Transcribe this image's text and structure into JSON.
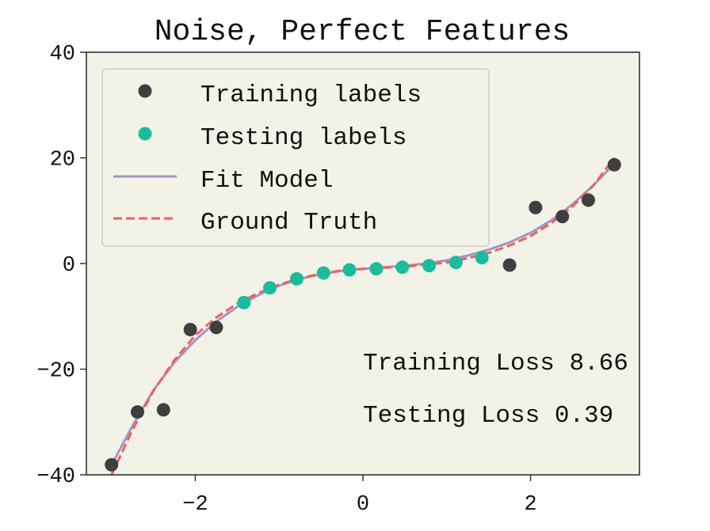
{
  "chart_data": {
    "type": "scatter",
    "title": "Noise, Perfect Features",
    "xlabel": "",
    "ylabel": "",
    "xlim": [
      -3.3,
      3.3
    ],
    "ylim": [
      -40,
      40
    ],
    "x_ticks": [
      -2,
      0,
      2
    ],
    "y_ticks": [
      -40,
      -20,
      0,
      20,
      40
    ],
    "grid": false,
    "legend_position": "upper-left",
    "background_color": "#f2f2e6",
    "series": [
      {
        "name": "Training labels",
        "kind": "points",
        "color": "#3f3f3f",
        "x": [
          -3.0,
          -2.69,
          -2.38,
          -2.06,
          -1.75,
          1.75,
          2.06,
          2.38,
          2.69,
          3.0
        ],
        "y": [
          -38.1,
          -28.1,
          -27.7,
          -12.5,
          -12.1,
          -0.3,
          10.6,
          8.9,
          12.0,
          18.7
        ]
      },
      {
        "name": "Testing labels",
        "kind": "points",
        "color": "#1abc9c",
        "x": [
          -1.42,
          -1.11,
          -0.79,
          -0.47,
          -0.16,
          0.16,
          0.47,
          0.79,
          1.11,
          1.42
        ],
        "y": [
          -7.4,
          -4.6,
          -2.9,
          -1.8,
          -1.2,
          -1.0,
          -0.7,
          -0.4,
          0.2,
          1.1
        ]
      },
      {
        "name": "Fit Model",
        "kind": "line",
        "style": "solid",
        "color": "#a594c1",
        "x": [
          -3.0,
          -2.75,
          -2.5,
          -2.25,
          -2.0,
          -1.75,
          -1.5,
          -1.25,
          -1.0,
          -0.75,
          -0.5,
          -0.25,
          0.0,
          0.25,
          0.5,
          0.75,
          1.0,
          1.25,
          1.5,
          1.75,
          2.0,
          2.25,
          2.5,
          2.75,
          3.0
        ],
        "y": [
          -38.2,
          -30.7,
          -24.0,
          -18.7,
          -14.5,
          -11.0,
          -8.2,
          -6.0,
          -4.2,
          -2.9,
          -2.0,
          -1.4,
          -1.0,
          -0.7,
          -0.4,
          0.0,
          0.6,
          1.5,
          2.6,
          4.0,
          5.8,
          8.2,
          11.2,
          14.8,
          18.9
        ]
      },
      {
        "name": "Ground Truth",
        "kind": "line",
        "style": "dashed",
        "color": "#f06060",
        "x": [
          -3.0,
          -2.75,
          -2.5,
          -2.25,
          -2.0,
          -1.75,
          -1.5,
          -1.25,
          -1.0,
          -0.75,
          -0.5,
          -0.25,
          0.0,
          0.25,
          0.5,
          0.75,
          1.0,
          1.25,
          1.5,
          1.75,
          2.0,
          2.25,
          2.5,
          2.75,
          3.0
        ],
        "y": [
          -40.0,
          -31.5,
          -24.1,
          -18.3,
          -13.6,
          -10.2,
          -7.6,
          -5.6,
          -4.0,
          -2.8,
          -1.9,
          -1.3,
          -1.0,
          -0.8,
          -0.6,
          -0.2,
          0.2,
          1.0,
          2.0,
          3.4,
          5.2,
          7.7,
          10.8,
          14.8,
          20.0
        ]
      }
    ],
    "annotations": [
      {
        "text": "Training Loss 8.66",
        "x": 0.0,
        "y": -19.0
      },
      {
        "text": "Testing Loss 0.39",
        "x": 0.0,
        "y": -29.0
      }
    ]
  }
}
